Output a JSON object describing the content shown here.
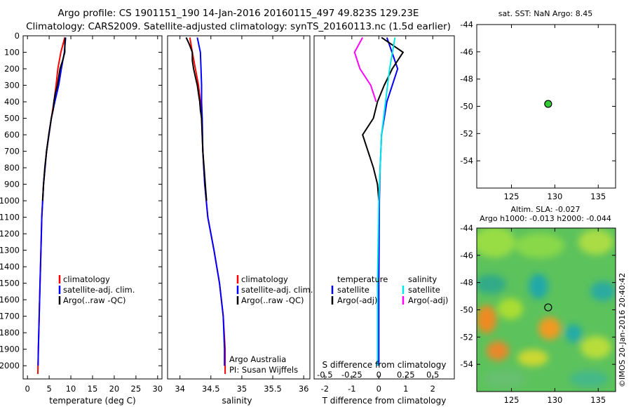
{
  "header": {
    "line1": "Argo profile: CS 1901151_190 14-Jan-2016 20160115_497 49.823S 129.23E",
    "line2": "Climatology: CARS2009. Satellite-adjusted climatology: synTS_20160113.nc (1.5d earlier)"
  },
  "colors": {
    "climatology": "#ff0000",
    "satellite": "#0000ff",
    "argo": "#000000",
    "sal_satellite": "#00e5e5",
    "sal_argo": "#ff00ff",
    "marker_green": "#33cc33"
  },
  "chart_data": [
    {
      "type": "line",
      "panel": "temperature",
      "xlabel": "temperature (deg C)",
      "ylabel": "",
      "xlim": [
        -1,
        31
      ],
      "ylim": [
        2080,
        0
      ],
      "x_ticks": [
        "0",
        "5",
        "10",
        "15",
        "20",
        "25",
        "30"
      ],
      "y_ticks": [
        "0",
        "100",
        "200",
        "300",
        "400",
        "500",
        "600",
        "700",
        "800",
        "900",
        "1000",
        "1100",
        "1200",
        "1300",
        "1400",
        "1500",
        "1600",
        "1700",
        "1800",
        "1900",
        "2000"
      ],
      "legend": [
        "climatology",
        "satellite-adj. clim.",
        "Argo(..raw -QC)"
      ],
      "legend_position": "lower-right",
      "series": [
        {
          "name": "climatology",
          "color": "#ff0000",
          "depth": [
            10,
            100,
            200,
            300,
            400,
            500,
            700,
            900,
            1100,
            1300,
            1500,
            1700,
            1900,
            2050
          ],
          "values": [
            8.6,
            7.7,
            7.0,
            6.6,
            6.1,
            5.5,
            4.4,
            3.7,
            3.3,
            3.1,
            2.9,
            2.7,
            2.5,
            2.4
          ]
        },
        {
          "name": "satellite-adj. clim.",
          "color": "#0000ff",
          "depth": [
            10,
            100,
            200,
            300,
            400,
            500,
            700,
            900,
            1100,
            1300,
            1500,
            1700,
            1900,
            2000
          ],
          "values": [
            8.8,
            8.5,
            7.8,
            7.2,
            6.3,
            5.5,
            4.4,
            3.7,
            3.3,
            3.1,
            2.9,
            2.7,
            2.5,
            2.45
          ]
        },
        {
          "name": "Argo(..raw -QC)",
          "color": "#000000",
          "depth": [
            10,
            50,
            100,
            150,
            200,
            250,
            300,
            350,
            400,
            450,
            500,
            600,
            700,
            800,
            900,
            1000
          ],
          "values": [
            8.7,
            8.6,
            8.6,
            8.1,
            7.5,
            7.2,
            6.9,
            6.4,
            6.1,
            5.9,
            5.5,
            4.9,
            4.4,
            4.0,
            3.7,
            3.5
          ]
        }
      ]
    },
    {
      "type": "line",
      "panel": "salinity",
      "xlabel": "salinity",
      "ylabel": "",
      "xlim": [
        33.8,
        36.1
      ],
      "ylim": [
        2080,
        0
      ],
      "x_ticks": [
        "34",
        "34.5",
        "35",
        "35.5",
        "36"
      ],
      "legend": [
        "climatology",
        "satellite-adj. clim.",
        "Argo(..raw -QC)"
      ],
      "legend_position": "lower-right",
      "annotations": [
        "Argo Australia",
        "PI: Susan Wijffels"
      ],
      "series": [
        {
          "name": "climatology",
          "color": "#ff0000",
          "depth": [
            10,
            100,
            200,
            300,
            400,
            500,
            700,
            900,
            1100,
            1300,
            1500,
            1700,
            1900,
            2050
          ],
          "values": [
            34.16,
            34.2,
            34.25,
            34.3,
            34.33,
            34.35,
            34.37,
            34.4,
            34.45,
            34.55,
            34.64,
            34.7,
            34.73,
            34.73
          ]
        },
        {
          "name": "satellite-adj. clim.",
          "color": "#0000ff",
          "depth": [
            10,
            100,
            200,
            300,
            400,
            500,
            700,
            900,
            1100,
            1300,
            1500,
            1700,
            1900,
            2000
          ],
          "values": [
            34.28,
            34.33,
            34.34,
            34.35,
            34.35,
            34.36,
            34.37,
            34.4,
            34.45,
            34.55,
            34.64,
            34.7,
            34.72,
            34.72
          ]
        },
        {
          "name": "Argo(..raw -QC)",
          "color": "#000000",
          "depth": [
            10,
            50,
            100,
            150,
            200,
            250,
            300,
            350,
            400,
            450,
            500,
            600,
            700,
            800,
            900,
            1000
          ],
          "values": [
            34.1,
            34.15,
            34.2,
            34.2,
            34.22,
            34.25,
            34.28,
            34.3,
            34.32,
            34.33,
            34.35,
            34.36,
            34.37,
            34.39,
            34.41,
            34.43
          ]
        }
      ]
    },
    {
      "type": "line",
      "panel": "difference",
      "xlabel": "T difference from climatology",
      "xlabel_top": "S difference from climatology",
      "xlim": [
        -2.4,
        2.8
      ],
      "ylim": [
        2080,
        0
      ],
      "x_ticks": [
        "-2",
        "-1",
        "0",
        "1",
        "2"
      ],
      "x_ticks_top": [
        "-0.5",
        "-0.25",
        "0",
        "0.25",
        "0.5"
      ],
      "legend_headers": [
        "temperature",
        "salinity"
      ],
      "legend": [
        "satellite",
        "Argo(-adj)",
        "satellite",
        "Argo(-adj)"
      ],
      "series": [
        {
          "name": "satellite",
          "group": "temperature",
          "color": "#0000ff",
          "depth": [
            10,
            200,
            400,
            600,
            800,
            1000,
            1500,
            2000
          ],
          "values": [
            0.3,
            0.7,
            0.3,
            0.1,
            0.05,
            0.02,
            0.0,
            0.0
          ]
        },
        {
          "name": "Argo(-adj)",
          "group": "temperature",
          "color": "#000000",
          "depth": [
            10,
            100,
            200,
            300,
            400,
            500,
            600,
            700,
            800,
            900,
            1000
          ],
          "values": [
            0.1,
            0.9,
            0.5,
            0.2,
            -0.05,
            -0.2,
            -0.6,
            -0.4,
            -0.2,
            -0.05,
            0.0
          ]
        },
        {
          "name": "satellite",
          "group": "salinity",
          "color": "#00e5e5",
          "depth": [
            10,
            200,
            400,
            600,
            800,
            1000,
            1500,
            2000
          ],
          "values": [
            0.6,
            0.4,
            0.25,
            0.1,
            0.05,
            0.0,
            -0.05,
            -0.05
          ]
        },
        {
          "name": "Argo(-adj)",
          "group": "salinity",
          "color": "#ff00ff",
          "depth": [
            10,
            100,
            200,
            300,
            400
          ],
          "values": [
            -0.6,
            -0.9,
            -0.7,
            -0.3,
            -0.1
          ]
        }
      ]
    },
    {
      "type": "scatter",
      "panel": "sst-map",
      "title": "sat. SST: NaN Argo: 8.45",
      "xlim": [
        121,
        137
      ],
      "ylim": [
        -56,
        -44
      ],
      "x_ticks": [
        "125",
        "130",
        "135"
      ],
      "y_ticks": [
        "-44",
        "-46",
        "-48",
        "-50",
        "-52",
        "-54"
      ],
      "points": [
        {
          "x": 129.23,
          "y": -49.823,
          "color": "#33cc33"
        }
      ]
    },
    {
      "type": "heatmap",
      "panel": "sla-map",
      "title": "Altim. SLA: -0.027",
      "subtitle": "Argo h1000: -0.013 h2000: -0.044",
      "xlim": [
        121,
        137
      ],
      "ylim": [
        -56,
        -44
      ],
      "x_ticks": [
        "125",
        "130",
        "135"
      ],
      "y_ticks": [
        "-44",
        "-46",
        "-48",
        "-50",
        "-52",
        "-54"
      ],
      "points": [
        {
          "x": 129.23,
          "y": -49.823
        }
      ],
      "side_label": "©IMOS 20-Jan-2016 20:40:42"
    }
  ]
}
